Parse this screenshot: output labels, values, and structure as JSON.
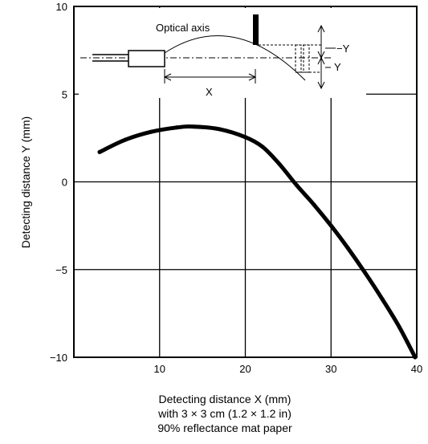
{
  "chart_data": {
    "type": "line",
    "xlabel": "Detecting distance X (mm)",
    "ylabel": "Detecting distance Y (mm)",
    "xlim": [
      0,
      40
    ],
    "ylim": [
      -10,
      10
    ],
    "x_ticks": [
      10,
      20,
      30,
      40
    ],
    "y_ticks": [
      10,
      5,
      0,
      -5,
      -10
    ],
    "y_tick_labels": [
      "10",
      "5",
      "0",
      "−5",
      "−10"
    ],
    "grid": true,
    "series": [
      {
        "x": [
          3,
          6,
          9,
          12,
          14,
          17,
          20,
          22,
          24,
          26,
          28,
          30,
          32,
          34,
          36,
          38,
          39.8
        ],
        "y": [
          1.7,
          2.4,
          2.85,
          3.1,
          3.15,
          3.0,
          2.55,
          2.0,
          1.0,
          -0.2,
          -1.3,
          -2.5,
          -3.8,
          -5.2,
          -6.7,
          -8.3,
          -10
        ]
      }
    ],
    "caption_lines": [
      "Detecting distance X (mm)",
      "with 3 × 3 cm (1.2 × 1.2 in)",
      "90% reflectance mat paper"
    ],
    "inset": {
      "optical_axis_label": "Optical axis",
      "x_label": "X",
      "neg_y_label": "−Y",
      "pos_y_label": "Y"
    }
  }
}
